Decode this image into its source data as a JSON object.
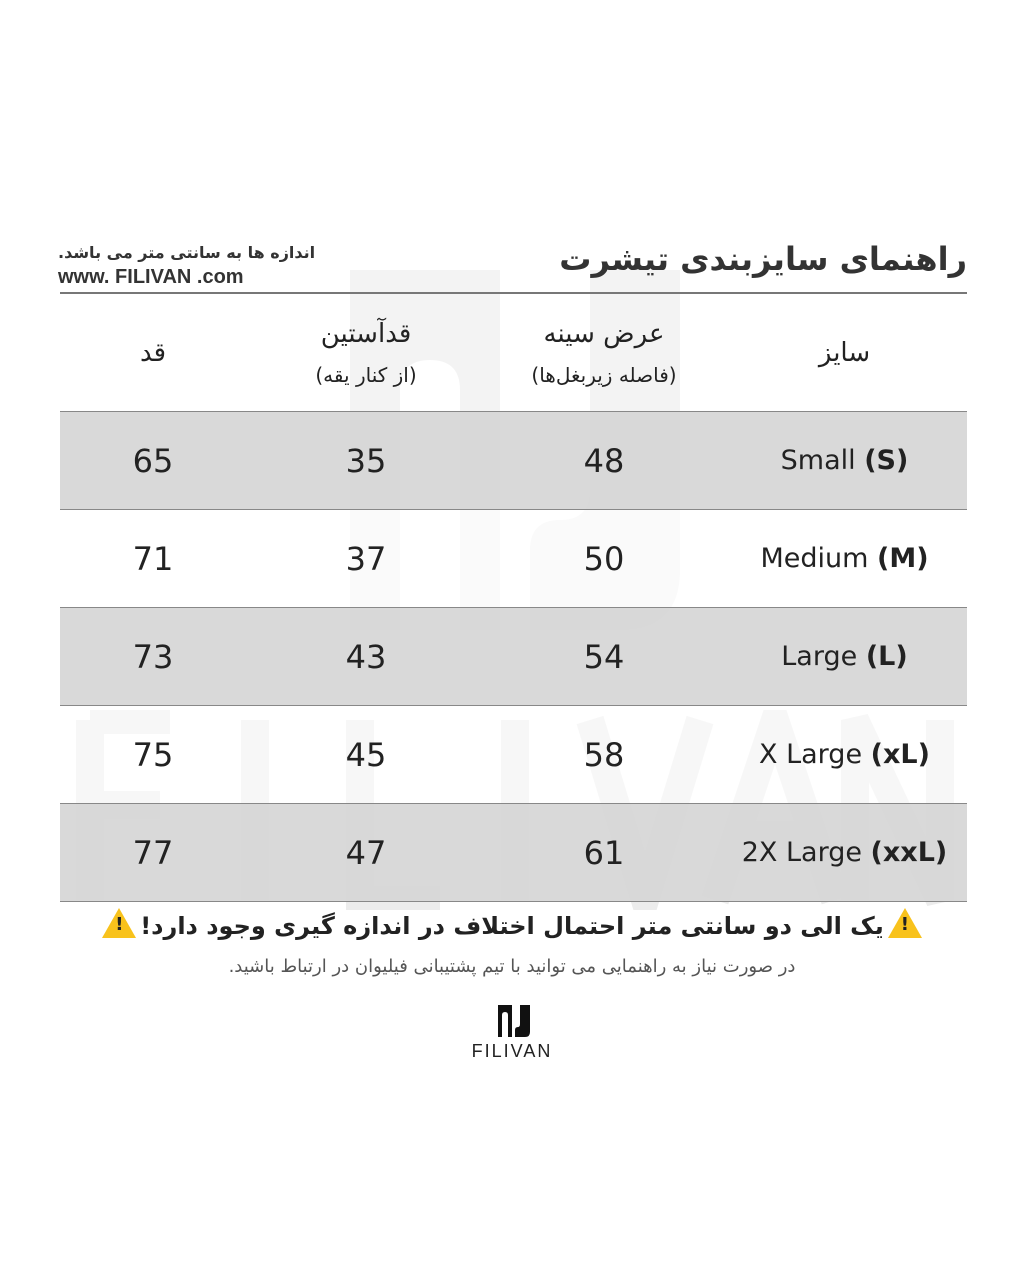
{
  "header": {
    "title": "راهنمای سایزبندی تیشرت",
    "note": "اندازه ها به سانتی متر می باشد.",
    "url": "www. FILIVAN .com"
  },
  "table": {
    "columns": [
      {
        "label": "سایز",
        "sub": ""
      },
      {
        "label": "عرض سینه",
        "sub": "(فاصله زیربغل‌ها)"
      },
      {
        "label": "قدآستین",
        "sub": "(از کنار یقه)"
      },
      {
        "label": "قد",
        "sub": ""
      }
    ],
    "rows": [
      {
        "size": "Small",
        "code": "(S)",
        "chest": "48",
        "sleeve": "35",
        "length": "65"
      },
      {
        "size": "Medium",
        "code": "(M)",
        "chest": "50",
        "sleeve": "37",
        "length": "71"
      },
      {
        "size": "Large",
        "code": "(L)",
        "chest": "54",
        "sleeve": "43",
        "length": "73"
      },
      {
        "size": "X Large",
        "code": "(xL)",
        "chest": "58",
        "sleeve": "45",
        "length": "75"
      },
      {
        "size": "2X Large",
        "code": "(xxL)",
        "chest": "61",
        "sleeve": "47",
        "length": "77"
      }
    ]
  },
  "footer": {
    "warning": "یک الی دو سانتی متر احتمال اختلاف در اندازه گیری وجود دارد!",
    "warning_icon": "warning-triangle-icon",
    "support": "در صورت نیاز به راهنمایی می توانید با تیم پشتیبانی فیلیوان در ارتباط باشید.",
    "brand": "FILIVAN",
    "watermark": "FILIVAN"
  },
  "colors": {
    "row_alt": "#d6d6d6",
    "warning": "#f8c21c"
  }
}
